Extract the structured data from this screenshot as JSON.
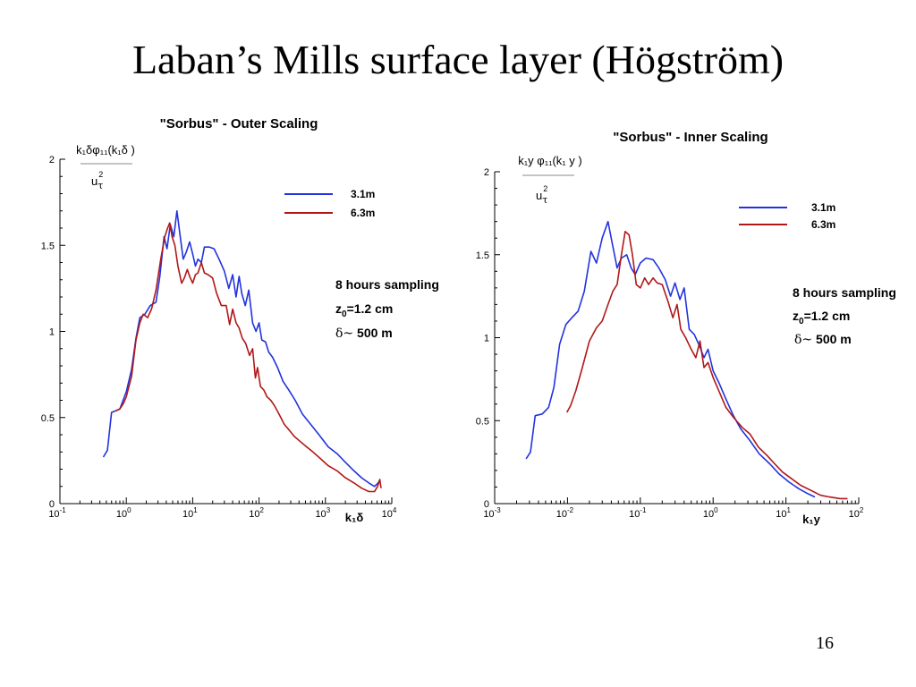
{
  "slide": {
    "title": "Laban’s Mills surface layer (Högström)",
    "page_number": "16"
  },
  "chart_data": [
    {
      "type": "line",
      "title": "\"Sorbus\" - Outer Scaling",
      "ylabel": {
        "numerator": "k₁δφ₁₁(k₁δ )",
        "denominator_base": "u",
        "denominator_sup": "2",
        "denominator_sub": "τ"
      },
      "xlabel": "k₁δ",
      "x_scale": "log",
      "xlim": [
        0.1,
        10000
      ],
      "ylim": [
        0,
        2
      ],
      "x_ticks": [
        {
          "base": "10",
          "exp": "-1",
          "value": 0.1
        },
        {
          "base": "10",
          "exp": "0",
          "value": 1
        },
        {
          "base": "10",
          "exp": "1",
          "value": 10
        },
        {
          "base": "10",
          "exp": "2",
          "value": 100
        },
        {
          "base": "10",
          "exp": "3",
          "value": 1000
        },
        {
          "base": "10",
          "exp": "4",
          "value": 10000
        }
      ],
      "y_ticks": [
        {
          "label": "0",
          "value": 0
        },
        {
          "label": "0.5",
          "value": 0.5
        },
        {
          "label": "1",
          "value": 1
        },
        {
          "label": "1.5",
          "value": 1.5
        },
        {
          "label": "2",
          "value": 2
        }
      ],
      "legend": {
        "placement": "top-right"
      },
      "annotations": {
        "line1": "8 hours sampling",
        "line2_prefix": "z",
        "line2_sub": "0",
        "line2_suffix": "=1.2 cm",
        "line3_symbol": "δ~",
        "line3_text": " 500 m"
      },
      "series": [
        {
          "name": "3.1m",
          "color": "#2233dd",
          "points": [
            [
              0.45,
              0.27
            ],
            [
              0.52,
              0.31
            ],
            [
              0.6,
              0.53
            ],
            [
              0.7,
              0.54
            ],
            [
              0.8,
              0.55
            ],
            [
              1.0,
              0.65
            ],
            [
              1.2,
              0.78
            ],
            [
              1.4,
              0.96
            ],
            [
              1.6,
              1.08
            ],
            [
              1.9,
              1.1
            ],
            [
              2.3,
              1.15
            ],
            [
              2.8,
              1.17
            ],
            [
              3.2,
              1.32
            ],
            [
              3.7,
              1.55
            ],
            [
              4.1,
              1.48
            ],
            [
              4.6,
              1.62
            ],
            [
              5.2,
              1.55
            ],
            [
              5.8,
              1.7
            ],
            [
              6.5,
              1.55
            ],
            [
              7.2,
              1.42
            ],
            [
              8.0,
              1.46
            ],
            [
              9.0,
              1.52
            ],
            [
              10,
              1.45
            ],
            [
              11,
              1.38
            ],
            [
              12,
              1.42
            ],
            [
              13.5,
              1.4
            ],
            [
              15,
              1.49
            ],
            [
              18,
              1.49
            ],
            [
              21,
              1.48
            ],
            [
              25,
              1.42
            ],
            [
              30,
              1.35
            ],
            [
              35,
              1.25
            ],
            [
              40,
              1.33
            ],
            [
              45,
              1.2
            ],
            [
              50,
              1.32
            ],
            [
              55,
              1.22
            ],
            [
              62,
              1.15
            ],
            [
              70,
              1.24
            ],
            [
              80,
              1.05
            ],
            [
              90,
              1.0
            ],
            [
              100,
              1.05
            ],
            [
              110,
              0.95
            ],
            [
              125,
              0.94
            ],
            [
              140,
              0.88
            ],
            [
              160,
              0.85
            ],
            [
              190,
              0.79
            ],
            [
              230,
              0.71
            ],
            [
              280,
              0.66
            ],
            [
              350,
              0.6
            ],
            [
              450,
              0.52
            ],
            [
              600,
              0.46
            ],
            [
              800,
              0.4
            ],
            [
              1100,
              0.33
            ],
            [
              1500,
              0.29
            ],
            [
              2000,
              0.24
            ],
            [
              2700,
              0.19
            ],
            [
              3500,
              0.15
            ],
            [
              4500,
              0.12
            ],
            [
              5500,
              0.1
            ],
            [
              6200,
              0.12
            ],
            [
              6700,
              0.14
            ]
          ]
        },
        {
          "name": "6.3m",
          "color": "#b01818",
          "points": [
            [
              0.7,
              0.54
            ],
            [
              0.8,
              0.55
            ],
            [
              0.9,
              0.58
            ],
            [
              1.0,
              0.62
            ],
            [
              1.2,
              0.74
            ],
            [
              1.4,
              0.95
            ],
            [
              1.6,
              1.05
            ],
            [
              1.8,
              1.1
            ],
            [
              2.1,
              1.08
            ],
            [
              2.4,
              1.13
            ],
            [
              2.8,
              1.24
            ],
            [
              3.3,
              1.42
            ],
            [
              3.8,
              1.55
            ],
            [
              4.2,
              1.6
            ],
            [
              4.5,
              1.63
            ],
            [
              4.9,
              1.55
            ],
            [
              5.4,
              1.5
            ],
            [
              6.0,
              1.38
            ],
            [
              6.8,
              1.28
            ],
            [
              7.5,
              1.31
            ],
            [
              8.3,
              1.36
            ],
            [
              9.0,
              1.32
            ],
            [
              10,
              1.28
            ],
            [
              11,
              1.33
            ],
            [
              12,
              1.34
            ],
            [
              13.5,
              1.4
            ],
            [
              15,
              1.34
            ],
            [
              17,
              1.33
            ],
            [
              20,
              1.31
            ],
            [
              23,
              1.22
            ],
            [
              27,
              1.15
            ],
            [
              32,
              1.15
            ],
            [
              36,
              1.04
            ],
            [
              40,
              1.13
            ],
            [
              45,
              1.05
            ],
            [
              50,
              1.02
            ],
            [
              56,
              0.96
            ],
            [
              63,
              0.93
            ],
            [
              72,
              0.86
            ],
            [
              80,
              0.9
            ],
            [
              88,
              0.73
            ],
            [
              95,
              0.79
            ],
            [
              105,
              0.68
            ],
            [
              118,
              0.66
            ],
            [
              132,
              0.62
            ],
            [
              150,
              0.6
            ],
            [
              170,
              0.57
            ],
            [
              200,
              0.52
            ],
            [
              240,
              0.46
            ],
            [
              280,
              0.43
            ],
            [
              340,
              0.39
            ],
            [
              420,
              0.36
            ],
            [
              520,
              0.33
            ],
            [
              650,
              0.3
            ],
            [
              850,
              0.26
            ],
            [
              1100,
              0.22
            ],
            [
              1500,
              0.19
            ],
            [
              2000,
              0.15
            ],
            [
              2700,
              0.12
            ],
            [
              3500,
              0.09
            ],
            [
              4500,
              0.07
            ],
            [
              5500,
              0.07
            ],
            [
              6100,
              0.1
            ],
            [
              6600,
              0.14
            ],
            [
              6900,
              0.09
            ]
          ]
        }
      ]
    },
    {
      "type": "line",
      "title": "\"Sorbus\" - Inner Scaling",
      "ylabel": {
        "numerator": "k₁y φ₁₁(k₁ y )",
        "denominator_base": "u",
        "denominator_sup": "2",
        "denominator_sub": "τ"
      },
      "xlabel": "k₁y",
      "x_scale": "log",
      "xlim": [
        0.001,
        100
      ],
      "ylim": [
        0,
        2
      ],
      "x_ticks": [
        {
          "base": "10",
          "exp": "-3",
          "value": 0.001
        },
        {
          "base": "10",
          "exp": "-2",
          "value": 0.01
        },
        {
          "base": "10",
          "exp": "-1",
          "value": 0.1
        },
        {
          "base": "10",
          "exp": "0",
          "value": 1
        },
        {
          "base": "10",
          "exp": "1",
          "value": 10
        },
        {
          "base": "10",
          "exp": "2",
          "value": 100
        }
      ],
      "y_ticks": [
        {
          "label": "0",
          "value": 0
        },
        {
          "label": "0.5",
          "value": 0.5
        },
        {
          "label": "1",
          "value": 1
        },
        {
          "label": "1.5",
          "value": 1.5
        },
        {
          "label": "2",
          "value": 2
        }
      ],
      "legend": {
        "placement": "top-right"
      },
      "annotations": {
        "line1": "8 hours sampling",
        "line2_prefix": "z",
        "line2_sub": "0",
        "line2_suffix": "=1.2 cm",
        "line3_symbol": "δ~",
        "line3_text": " 500 m"
      },
      "series": [
        {
          "name": "3.1m",
          "color": "#2233dd",
          "points": [
            [
              0.0027,
              0.27
            ],
            [
              0.0031,
              0.31
            ],
            [
              0.0036,
              0.53
            ],
            [
              0.0045,
              0.54
            ],
            [
              0.0055,
              0.58
            ],
            [
              0.0065,
              0.7
            ],
            [
              0.0078,
              0.96
            ],
            [
              0.0095,
              1.08
            ],
            [
              0.0115,
              1.12
            ],
            [
              0.014,
              1.16
            ],
            [
              0.017,
              1.28
            ],
            [
              0.021,
              1.52
            ],
            [
              0.025,
              1.45
            ],
            [
              0.03,
              1.6
            ],
            [
              0.036,
              1.7
            ],
            [
              0.042,
              1.55
            ],
            [
              0.048,
              1.42
            ],
            [
              0.055,
              1.48
            ],
            [
              0.065,
              1.5
            ],
            [
              0.075,
              1.42
            ],
            [
              0.085,
              1.38
            ],
            [
              0.1,
              1.45
            ],
            [
              0.12,
              1.48
            ],
            [
              0.15,
              1.47
            ],
            [
              0.18,
              1.42
            ],
            [
              0.22,
              1.35
            ],
            [
              0.26,
              1.25
            ],
            [
              0.3,
              1.33
            ],
            [
              0.35,
              1.23
            ],
            [
              0.4,
              1.3
            ],
            [
              0.47,
              1.05
            ],
            [
              0.55,
              1.02
            ],
            [
              0.65,
              0.95
            ],
            [
              0.75,
              0.88
            ],
            [
              0.85,
              0.93
            ],
            [
              1.0,
              0.8
            ],
            [
              1.2,
              0.73
            ],
            [
              1.5,
              0.63
            ],
            [
              1.9,
              0.53
            ],
            [
              2.4,
              0.45
            ],
            [
              3.2,
              0.38
            ],
            [
              4.3,
              0.3
            ],
            [
              6,
              0.24
            ],
            [
              8,
              0.18
            ],
            [
              11,
              0.13
            ],
            [
              15,
              0.09
            ],
            [
              20,
              0.06
            ],
            [
              25,
              0.04
            ]
          ]
        },
        {
          "name": "6.3m",
          "color": "#b01818",
          "points": [
            [
              0.0098,
              0.55
            ],
            [
              0.011,
              0.59
            ],
            [
              0.013,
              0.68
            ],
            [
              0.016,
              0.82
            ],
            [
              0.02,
              0.98
            ],
            [
              0.025,
              1.06
            ],
            [
              0.03,
              1.1
            ],
            [
              0.036,
              1.2
            ],
            [
              0.042,
              1.28
            ],
            [
              0.048,
              1.32
            ],
            [
              0.055,
              1.5
            ],
            [
              0.062,
              1.64
            ],
            [
              0.07,
              1.62
            ],
            [
              0.078,
              1.5
            ],
            [
              0.088,
              1.32
            ],
            [
              0.1,
              1.3
            ],
            [
              0.115,
              1.36
            ],
            [
              0.13,
              1.32
            ],
            [
              0.15,
              1.36
            ],
            [
              0.17,
              1.33
            ],
            [
              0.2,
              1.32
            ],
            [
              0.24,
              1.22
            ],
            [
              0.28,
              1.12
            ],
            [
              0.32,
              1.2
            ],
            [
              0.36,
              1.05
            ],
            [
              0.42,
              1.0
            ],
            [
              0.5,
              0.93
            ],
            [
              0.58,
              0.88
            ],
            [
              0.66,
              0.98
            ],
            [
              0.75,
              0.82
            ],
            [
              0.85,
              0.85
            ],
            [
              1.0,
              0.76
            ],
            [
              1.2,
              0.68
            ],
            [
              1.5,
              0.58
            ],
            [
              1.9,
              0.52
            ],
            [
              2.5,
              0.46
            ],
            [
              3.2,
              0.42
            ],
            [
              4.2,
              0.34
            ],
            [
              5.5,
              0.29
            ],
            [
              7,
              0.24
            ],
            [
              9,
              0.19
            ],
            [
              12,
              0.15
            ],
            [
              16,
              0.11
            ],
            [
              22,
              0.08
            ],
            [
              30,
              0.05
            ],
            [
              40,
              0.04
            ],
            [
              55,
              0.03
            ],
            [
              70,
              0.03
            ]
          ]
        }
      ]
    }
  ]
}
